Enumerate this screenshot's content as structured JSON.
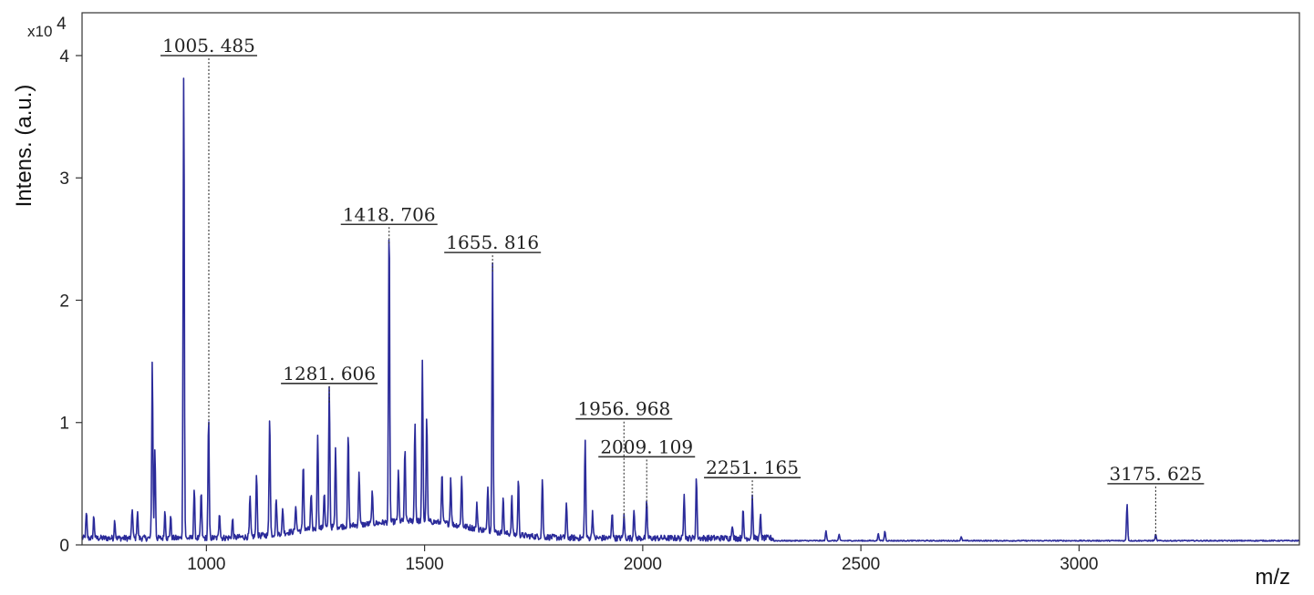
{
  "chart_data": {
    "type": "line",
    "xlabel": "m/z",
    "ylabel": "Intens. (a.u.)",
    "y_multiplier": "x10",
    "y_multiplier_exp": "4",
    "xlim": [
      715,
      3505
    ],
    "ylim": [
      0,
      4.35
    ],
    "x_ticks": [
      1000,
      1500,
      2000,
      2500,
      3000
    ],
    "y_ticks": [
      0,
      1,
      2,
      3,
      4
    ],
    "grid": false,
    "line_color": "#2b2b9a",
    "baseline": 0.03,
    "peaks": [
      [
        725,
        0.2
      ],
      [
        742,
        0.18
      ],
      [
        790,
        0.15
      ],
      [
        830,
        0.25
      ],
      [
        842,
        0.22
      ],
      [
        876,
        1.45
      ],
      [
        882,
        0.72
      ],
      [
        905,
        0.22
      ],
      [
        918,
        0.18
      ],
      [
        948,
        3.82
      ],
      [
        972,
        0.4
      ],
      [
        988,
        0.38
      ],
      [
        1005,
        0.98
      ],
      [
        1030,
        0.22
      ],
      [
        1060,
        0.15
      ],
      [
        1100,
        0.32
      ],
      [
        1115,
        0.52
      ],
      [
        1145,
        0.99
      ],
      [
        1160,
        0.3
      ],
      [
        1175,
        0.2
      ],
      [
        1205,
        0.22
      ],
      [
        1222,
        0.55
      ],
      [
        1240,
        0.28
      ],
      [
        1255,
        0.78
      ],
      [
        1270,
        0.3
      ],
      [
        1281.6,
        1.15
      ],
      [
        1296,
        0.65
      ],
      [
        1325,
        0.75
      ],
      [
        1350,
        0.45
      ],
      [
        1380,
        0.25
      ],
      [
        1418.7,
        2.45
      ],
      [
        1440,
        0.4
      ],
      [
        1455,
        0.58
      ],
      [
        1478,
        0.82
      ],
      [
        1495,
        1.3
      ],
      [
        1505,
        0.85
      ],
      [
        1540,
        0.4
      ],
      [
        1560,
        0.38
      ],
      [
        1585,
        0.4
      ],
      [
        1620,
        0.2
      ],
      [
        1645,
        0.38
      ],
      [
        1655.8,
        2.22
      ],
      [
        1680,
        0.3
      ],
      [
        1700,
        0.3
      ],
      [
        1715,
        0.45
      ],
      [
        1770,
        0.48
      ],
      [
        1825,
        0.28
      ],
      [
        1868,
        0.8
      ],
      [
        1885,
        0.22
      ],
      [
        1930,
        0.22
      ],
      [
        1957,
        0.18
      ],
      [
        1980,
        0.25
      ],
      [
        2009.1,
        0.3
      ],
      [
        2095,
        0.38
      ],
      [
        2123,
        0.5
      ],
      [
        2205,
        0.12
      ],
      [
        2230,
        0.22
      ],
      [
        2251.2,
        0.35
      ],
      [
        2270,
        0.18
      ],
      [
        2420,
        0.08
      ],
      [
        2450,
        0.05
      ],
      [
        2540,
        0.06
      ],
      [
        2555,
        0.08
      ],
      [
        2730,
        0.03
      ],
      [
        3110,
        0.3
      ],
      [
        3175.6,
        0.05
      ]
    ],
    "annotations": [
      {
        "label": "1005. 485",
        "x": 1005.485,
        "y": 0.98,
        "label_y": 4.0
      },
      {
        "label": "1281. 606",
        "x": 1281.606,
        "y": 1.15,
        "label_y": 1.32
      },
      {
        "label": "1418. 706",
        "x": 1418.706,
        "y": 2.45,
        "label_y": 2.62
      },
      {
        "label": "1655. 816",
        "x": 1655.816,
        "y": 2.22,
        "label_y": 2.39
      },
      {
        "label": "1956. 968",
        "x": 1956.968,
        "y": 0.2,
        "label_y": 1.03
      },
      {
        "label": "2009. 109",
        "x": 2009.109,
        "y": 0.3,
        "label_y": 0.72
      },
      {
        "label": "2251. 165",
        "x": 2251.165,
        "y": 0.35,
        "label_y": 0.55
      },
      {
        "label": "3175. 625",
        "x": 3175.625,
        "y": 0.05,
        "label_y": 0.5
      }
    ]
  }
}
